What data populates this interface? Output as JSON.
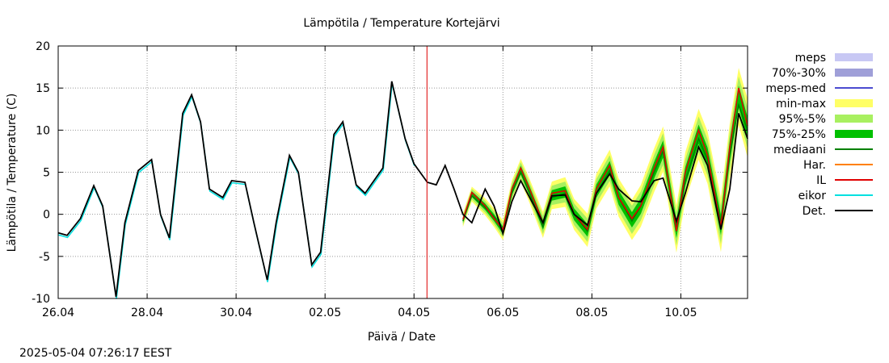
{
  "chart_data": {
    "type": "line",
    "title": "Lämpötila / Temperature   Kortejärvi",
    "xlabel": "Päivä / Date",
    "ylabel": "Lämpötila / Temperature (C)",
    "ylim": [
      -10,
      20
    ],
    "yticks": [
      "20",
      "15",
      "10",
      "5",
      "0",
      "-5",
      "-10"
    ],
    "xlim": [
      "2025-04-26",
      "2025-05-11T12:00"
    ],
    "xticks": [
      "26.04",
      "28.04",
      "30.04",
      "02.05",
      "04.05",
      "06.05",
      "08.05",
      "10.05"
    ],
    "grid": true,
    "legend_position": "right",
    "forecast_start": "2025-05-04T07:00",
    "legend": [
      {
        "label": "meps",
        "color": "#c8c8f4",
        "kind": "band"
      },
      {
        "label": "70%-30%",
        "color": "#9f9fd8",
        "kind": "band"
      },
      {
        "label": "meps-med",
        "color": "#4b4bd0",
        "kind": "line"
      },
      {
        "label": "min-max",
        "color": "#ffff66",
        "kind": "band"
      },
      {
        "label": "95%-5%",
        "color": "#a8f060",
        "kind": "band"
      },
      {
        "label": "75%-25%",
        "color": "#00c000",
        "kind": "band"
      },
      {
        "label": "mediaani",
        "color": "#008000",
        "kind": "line"
      },
      {
        "label": "Har.",
        "color": "#ff8000",
        "kind": "line"
      },
      {
        "label": "IL",
        "color": "#e00000",
        "kind": "line"
      },
      {
        "label": "eikor",
        "color": "#00e0e0",
        "kind": "line"
      },
      {
        "label": "Det.",
        "color": "#000000",
        "kind": "line"
      }
    ],
    "x_days_from_2025_04_26": [
      0,
      0.2,
      0.5,
      0.8,
      1.0,
      1.3,
      1.5,
      1.8,
      2.1,
      2.3,
      2.5,
      2.8,
      3.0,
      3.2,
      3.4,
      3.7,
      3.9,
      4.2,
      4.4,
      4.7,
      4.9,
      5.2,
      5.4,
      5.7,
      5.9,
      6.2,
      6.4,
      6.7,
      6.9,
      7.3,
      7.5,
      7.8,
      8.0,
      8.3,
      8.5,
      8.7,
      8.9,
      9.1,
      9.3,
      9.6,
      9.8,
      10.0,
      10.2,
      10.4,
      10.6,
      10.9,
      11.1,
      11.4,
      11.6,
      11.9,
      12.1,
      12.4,
      12.6,
      12.9,
      13.1,
      13.4,
      13.6,
      13.9,
      14.1,
      14.4,
      14.6,
      14.9,
      15.1,
      15.3,
      15.5
    ],
    "series": [
      {
        "name": "Det.",
        "values": [
          -2.2,
          -2.5,
          -0.5,
          3.4,
          1.0,
          -9.8,
          -1.0,
          5.2,
          6.5,
          0.0,
          -2.8,
          12.0,
          14.2,
          11.0,
          3.0,
          2.0,
          4.0,
          3.8,
          -1.0,
          -7.8,
          -1.0,
          7.0,
          5.0,
          -6.0,
          -4.5,
          9.5,
          11.0,
          3.5,
          2.5,
          5.5,
          15.8,
          9.0,
          6.0,
          3.8,
          3.5,
          5.8,
          3.0,
          0.0,
          -1.0,
          3.0,
          1.0,
          -2.3,
          1.5,
          4.0,
          2.0,
          -1.0,
          2.2,
          2.3,
          0.0,
          -1.3,
          2.5,
          4.8,
          3.0,
          1.6,
          1.5,
          4.0,
          4.3,
          -0.8,
          2.5,
          8.0,
          5.8,
          -1.8,
          3.0,
          12.0,
          9.0
        ]
      },
      {
        "name": "IL",
        "values": [
          null,
          null,
          null,
          null,
          null,
          null,
          null,
          null,
          null,
          null,
          null,
          null,
          null,
          null,
          null,
          null,
          null,
          null,
          null,
          null,
          null,
          null,
          null,
          null,
          null,
          null,
          null,
          null,
          null,
          null,
          null,
          null,
          null,
          null,
          null,
          null,
          null,
          -0.6,
          2.6,
          1.0,
          -0.5,
          -1.8,
          3.0,
          5.5,
          3.0,
          -1.0,
          2.5,
          2.8,
          0.0,
          -1.8,
          3.0,
          5.8,
          2.0,
          -0.5,
          1.0,
          5.5,
          8.0,
          -2.0,
          5.0,
          10.0,
          7.0,
          -1.5,
          8.0,
          15.0,
          10.5
        ]
      },
      {
        "name": "mediaani",
        "values": [
          null,
          null,
          null,
          null,
          null,
          null,
          null,
          null,
          null,
          null,
          null,
          null,
          null,
          null,
          null,
          null,
          null,
          null,
          null,
          null,
          null,
          null,
          null,
          null,
          null,
          null,
          null,
          null,
          null,
          null,
          null,
          null,
          null,
          null,
          null,
          null,
          null,
          -0.8,
          2.2,
          0.8,
          -0.3,
          -2.0,
          2.5,
          5.0,
          2.5,
          -1.5,
          2.0,
          2.5,
          0.0,
          -2.0,
          2.5,
          5.2,
          2.0,
          -0.8,
          1.0,
          5.0,
          7.5,
          -1.5,
          4.0,
          9.0,
          6.5,
          -1.0,
          7.0,
          13.0,
          10.0
        ]
      }
    ]
  },
  "timestamp": "2025-05-04  07:26:17 EEST"
}
